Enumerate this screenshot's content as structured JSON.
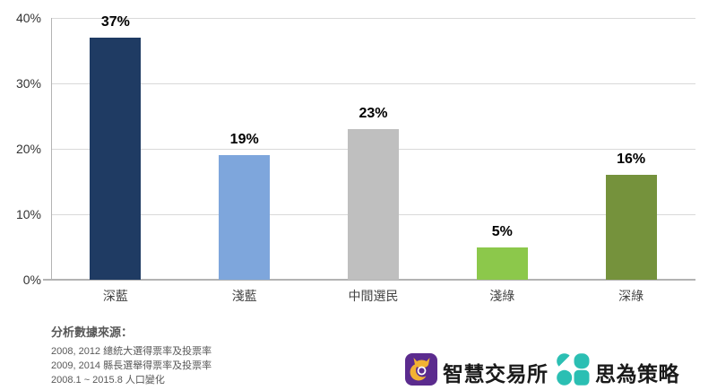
{
  "chart_data": {
    "type": "bar",
    "categories": [
      "深藍",
      "淺藍",
      "中間選民",
      "淺綠",
      "深綠"
    ],
    "values": [
      37,
      19,
      23,
      5,
      16
    ],
    "value_labels": [
      "37%",
      "19%",
      "23%",
      "5%",
      "16%"
    ],
    "bar_colors": [
      "#1f3b63",
      "#7ea6dc",
      "#bfbfbf",
      "#8cc84b",
      "#75923c"
    ],
    "y_ticks": [
      {
        "label": "40%",
        "value": 40
      },
      {
        "label": "30%",
        "value": 30
      },
      {
        "label": "20%",
        "value": 20
      },
      {
        "label": "10%",
        "value": 10
      },
      {
        "label": "0%",
        "value": 0
      }
    ],
    "ylim": [
      0,
      40
    ],
    "grid": true,
    "legend": "none",
    "title": ""
  },
  "source_note": {
    "title": "分析數據來源：",
    "lines": [
      "2008, 2012 總統大選得票率及投票率",
      "2009, 2014 縣長選舉得票率及投票率",
      "2008.1 ~ 2015.8 人口變化"
    ]
  },
  "footer": {
    "brand1": "智慧交易所",
    "brand2": "思為策略"
  },
  "colors": {
    "grid": "#d9d9d9",
    "axis": "#b3b3b3",
    "value_label": "#000000",
    "category_label": "#444444",
    "source_text": "#595959",
    "brand_text": "#1a1a1a",
    "logo_purple": "#5b2b8e",
    "logo_yellow": "#f2b233",
    "logo_teal": "#2bbfb3"
  }
}
